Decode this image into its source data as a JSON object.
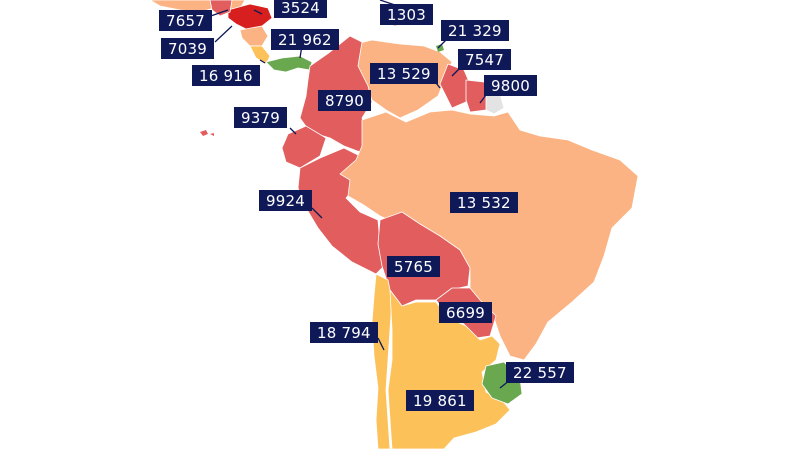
{
  "colors": {
    "red_dark": "#d71f1f",
    "red": "#e25d5d",
    "salmon": "#fbb383",
    "yellow": "#fdc15a",
    "green": "#6aa84f",
    "grey": "#e3e3e3",
    "label_bg": "#0f1957"
  },
  "labels": [
    {
      "id": "label-7657",
      "text": "7657"
    },
    {
      "id": "label-3524",
      "text": "3524"
    },
    {
      "id": "label-1303",
      "text": "1303"
    },
    {
      "id": "label-7039",
      "text": "7039"
    },
    {
      "id": "label-21962",
      "text": "21 962"
    },
    {
      "id": "label-21329",
      "text": "21 329"
    },
    {
      "id": "label-16916",
      "text": "16 916"
    },
    {
      "id": "label-7547",
      "text": "7547"
    },
    {
      "id": "label-13529",
      "text": "13 529"
    },
    {
      "id": "label-9800",
      "text": "9800"
    },
    {
      "id": "label-8790",
      "text": "8790"
    },
    {
      "id": "label-9379",
      "text": "9379"
    },
    {
      "id": "label-9924",
      "text": "9924"
    },
    {
      "id": "label-13532",
      "text": "13 532"
    },
    {
      "id": "label-5765",
      "text": "5765"
    },
    {
      "id": "label-6699",
      "text": "6699"
    },
    {
      "id": "label-18794",
      "text": "18 794"
    },
    {
      "id": "label-22557",
      "text": "22 557"
    },
    {
      "id": "label-19861",
      "text": "19 861"
    }
  ]
}
